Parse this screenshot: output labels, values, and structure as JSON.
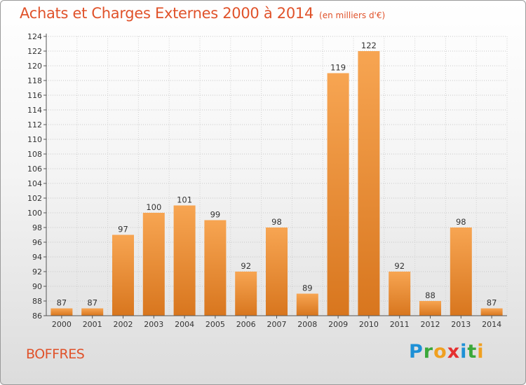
{
  "chart_title": "Achats et Charges Externes 2000 à 2014",
  "chart_unit": "(en milliers d'€)",
  "commune_name": "BOFFRES",
  "brand": {
    "letters": [
      {
        "char": "P",
        "color": "#1e90d6"
      },
      {
        "char": "r",
        "color": "#3aa83a"
      },
      {
        "char": "o",
        "color": "#f0a020"
      },
      {
        "char": "x",
        "color": "#e53030"
      },
      {
        "char": "i",
        "color": "#1e90d6"
      },
      {
        "char": "t",
        "color": "#3aa83a"
      },
      {
        "char": "i",
        "color": "#f0a020"
      }
    ]
  },
  "chart_data": {
    "type": "bar",
    "title": "Achats et Charges Externes 2000 à 2014",
    "subtitle": "(en milliers d'€)",
    "xlabel": "",
    "ylabel": "",
    "categories": [
      "2000",
      "2001",
      "2002",
      "2003",
      "2004",
      "2005",
      "2006",
      "2007",
      "2008",
      "2009",
      "2010",
      "2011",
      "2012",
      "2013",
      "2014"
    ],
    "values": [
      87,
      87,
      97,
      100,
      101,
      99,
      92,
      98,
      89,
      119,
      122,
      92,
      88,
      98,
      87
    ],
    "ylim": [
      86,
      124
    ],
    "yticks": [
      86,
      88,
      90,
      92,
      94,
      96,
      98,
      100,
      102,
      104,
      106,
      108,
      110,
      112,
      114,
      116,
      118,
      120,
      122,
      124
    ],
    "grid": true,
    "legend": "none",
    "bar_color": "#f29a3c"
  }
}
